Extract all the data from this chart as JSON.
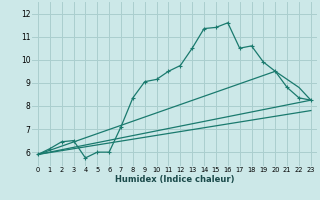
{
  "xlabel": "Humidex (Indice chaleur)",
  "bg_color": "#cce8e8",
  "grid_color": "#aacece",
  "line_color": "#1a7a6e",
  "xlim": [
    -0.5,
    23.5
  ],
  "ylim": [
    5.4,
    12.5
  ],
  "xticks": [
    0,
    1,
    2,
    3,
    4,
    5,
    6,
    7,
    8,
    9,
    10,
    11,
    12,
    13,
    14,
    15,
    16,
    17,
    18,
    19,
    20,
    21,
    22,
    23
  ],
  "yticks": [
    6,
    7,
    8,
    9,
    10,
    11,
    12
  ],
  "series1_x": [
    0,
    1,
    2,
    3,
    4,
    5,
    6,
    7,
    8,
    9,
    10,
    11,
    12,
    13,
    14,
    15,
    16,
    17,
    18,
    19,
    20,
    21,
    22,
    23
  ],
  "series1_y": [
    5.9,
    6.15,
    6.45,
    6.5,
    5.75,
    6.0,
    6.0,
    7.1,
    8.35,
    9.05,
    9.15,
    9.5,
    9.75,
    10.5,
    11.35,
    11.4,
    11.6,
    10.5,
    10.6,
    9.9,
    9.5,
    8.8,
    8.35,
    8.25
  ],
  "series2_x": [
    0,
    20,
    22,
    23
  ],
  "series2_y": [
    5.9,
    9.5,
    8.8,
    8.25
  ],
  "series3_x": [
    0,
    23
  ],
  "series3_y": [
    5.9,
    8.25
  ],
  "series4_x": [
    0,
    23
  ],
  "series4_y": [
    5.9,
    7.8
  ]
}
